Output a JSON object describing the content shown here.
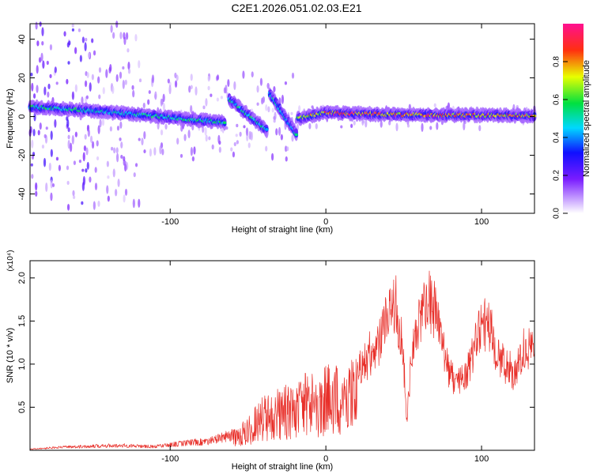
{
  "title": "C2E1.2026.051.02.03.E21",
  "colors": {
    "snr_line": "#e8302a",
    "frame": "#000000",
    "background": "#ffffff"
  },
  "chart_data": [
    {
      "type": "heatmap",
      "title": "C2E1.2026.051.02.03.E21",
      "xlabel": "Height of straight line (km)",
      "ylabel": "Frequency (Hz)",
      "xlim": [
        -190,
        134
      ],
      "ylim": [
        -50,
        48
      ],
      "x_ticks": [
        -100,
        0,
        100
      ],
      "y_ticks": [
        -40,
        -20,
        0,
        20,
        40
      ],
      "colorbar": {
        "label": "Normalized spectral amplitude",
        "range": [
          0,
          1
        ],
        "ticks": [
          0,
          0.2,
          0.4,
          0.6,
          0.8
        ],
        "tick_labels": [
          "0.0",
          "0.2",
          "0.4",
          "0.6",
          "0.8"
        ],
        "colormap": "rainbow (white-violet-blue-cyan-green-yellow-red-magenta)"
      },
      "ridge_segments": [
        {
          "x": [
            -190,
            -150
          ],
          "y": [
            5,
            3
          ],
          "amplitude": 0.55
        },
        {
          "x": [
            -150,
            -120
          ],
          "y": [
            3,
            1
          ],
          "amplitude": 0.5
        },
        {
          "x": [
            -120,
            -65
          ],
          "y": [
            1,
            -3
          ],
          "amplitude": 0.55
        },
        {
          "x": [
            -62,
            -38
          ],
          "y": [
            9,
            -7
          ],
          "amplitude": 0.55
        },
        {
          "x": [
            -36,
            -19
          ],
          "y": [
            12,
            -9
          ],
          "amplitude": 0.5
        },
        {
          "x": [
            -18,
            0
          ],
          "y": [
            -1,
            2
          ],
          "amplitude": 0.75
        },
        {
          "x": [
            0,
            40
          ],
          "y": [
            2,
            1
          ],
          "amplitude": 0.9
        },
        {
          "x": [
            40,
            134
          ],
          "y": [
            1,
            0.5
          ],
          "amplitude": 0.85
        }
      ]
    },
    {
      "type": "line",
      "xlabel": "Height of straight line (km)",
      "ylabel": "SNR (10 * v/v)",
      "y_multiplier": "(x10⁴)",
      "xlim": [
        -190,
        134
      ],
      "ylim": [
        0,
        2.2
      ],
      "x_ticks": [
        -100,
        0,
        100
      ],
      "y_ticks": [
        0.5,
        1.0,
        1.5,
        2.0
      ],
      "y_tick_labels": [
        "0.5",
        "1.0",
        "1.5",
        "2.0"
      ],
      "series": [
        {
          "name": "SNR",
          "envelope_x": [
            -190,
            -170,
            -150,
            -130,
            -110,
            -90,
            -75,
            -60,
            -50,
            -40,
            -30,
            -20,
            -10,
            0,
            10,
            20,
            30,
            35,
            40,
            45,
            50,
            52,
            55,
            60,
            65,
            70,
            75,
            80,
            85,
            90,
            95,
            100,
            105,
            110,
            115,
            120,
            125,
            130,
            134
          ],
          "envelope_y": [
            0.02,
            0.05,
            0.07,
            0.08,
            0.06,
            0.12,
            0.15,
            0.25,
            0.4,
            0.65,
            0.75,
            0.8,
            0.95,
            1.0,
            1.05,
            1.15,
            1.3,
            1.6,
            1.9,
            2.05,
            1.2,
            0.4,
            1.3,
            1.8,
            2.1,
            2.05,
            1.5,
            1.0,
            0.95,
            1.05,
            1.4,
            1.8,
            1.75,
            1.3,
            1.2,
            1.05,
            1.25,
            1.4,
            1.55
          ]
        }
      ]
    }
  ]
}
